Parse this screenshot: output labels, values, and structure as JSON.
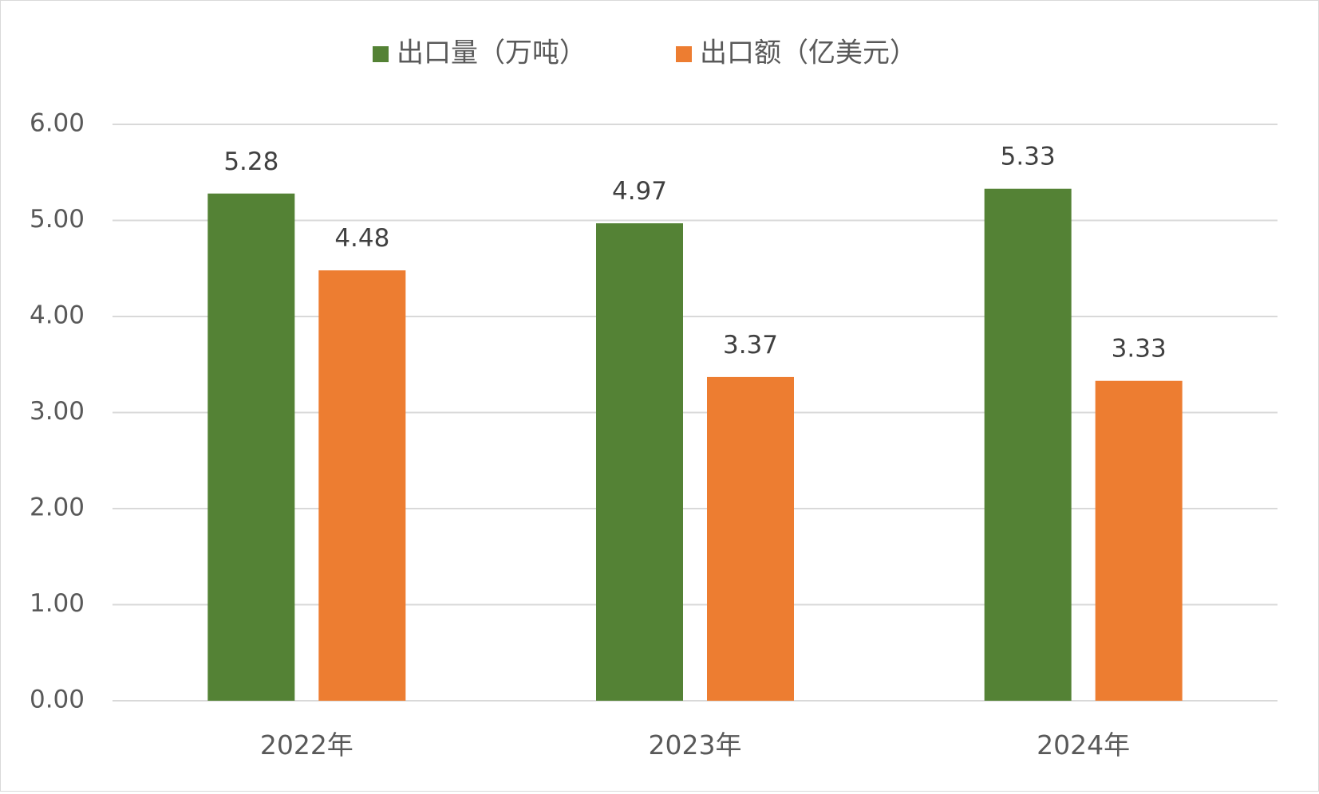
{
  "chart_data": {
    "type": "bar",
    "categories": [
      "2022年",
      "2023年",
      "2024年"
    ],
    "series": [
      {
        "name": "出口量（万吨）",
        "values": [
          5.28,
          4.97,
          5.33
        ],
        "color": "#548235"
      },
      {
        "name": "出口额（亿美元）",
        "values": [
          4.48,
          3.37,
          3.33
        ],
        "color": "#ED7D31"
      }
    ],
    "data_labels": [
      [
        "5.28",
        "4.97",
        "5.33"
      ],
      [
        "4.48",
        "3.37",
        "3.33"
      ]
    ],
    "ylim": [
      0,
      6
    ],
    "y_ticks": [
      0,
      1,
      2,
      3,
      4,
      5,
      6
    ],
    "y_tick_labels": [
      "0.00",
      "1.00",
      "2.00",
      "3.00",
      "4.00",
      "5.00",
      "6.00"
    ],
    "grid": true,
    "legend_position": "top-center",
    "gridline_color": "#d9d9d9",
    "text_color": "#595959",
    "label_color": "#404040"
  }
}
